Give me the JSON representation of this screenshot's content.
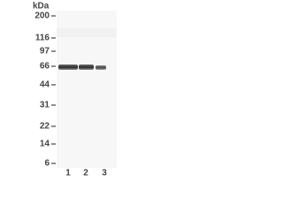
{
  "unit_label": "kDa",
  "markers": [
    "200",
    "116",
    "97",
    "66",
    "44",
    "31",
    "22",
    "14",
    "6"
  ],
  "lanes": [
    "1",
    "2",
    "3"
  ]
}
